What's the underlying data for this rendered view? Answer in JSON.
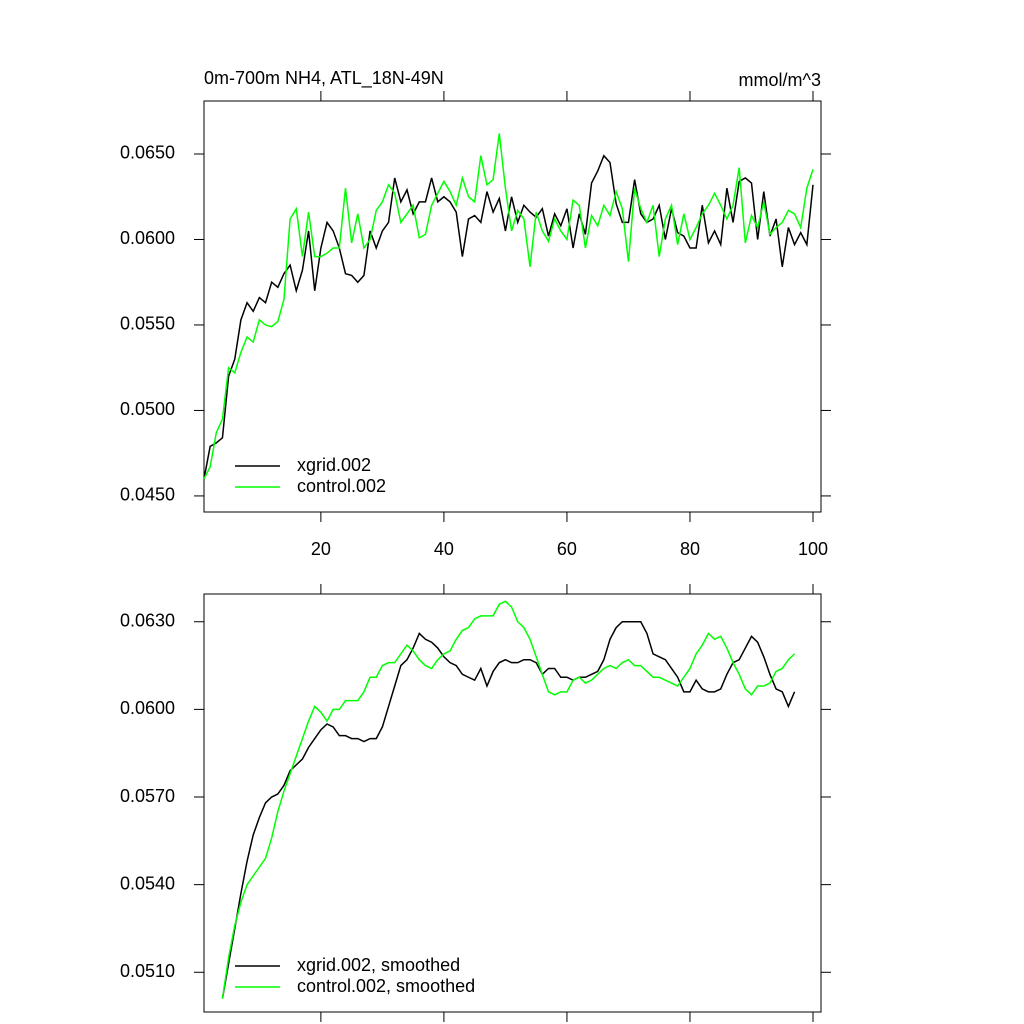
{
  "chart_data": [
    {
      "type": "line",
      "title": "0m-700m NH4, ATL_18N-49N",
      "units": "mmol/m^3",
      "x": [
        1,
        2,
        3,
        4,
        5,
        6,
        7,
        8,
        9,
        10,
        11,
        12,
        13,
        14,
        15,
        16,
        17,
        18,
        19,
        20,
        21,
        22,
        23,
        24,
        25,
        26,
        27,
        28,
        29,
        30,
        31,
        32,
        33,
        34,
        35,
        36,
        37,
        38,
        39,
        40,
        41,
        42,
        43,
        44,
        45,
        46,
        47,
        48,
        49,
        50,
        51,
        52,
        53,
        54,
        55,
        56,
        57,
        58,
        59,
        60,
        61,
        62,
        63,
        64,
        65,
        66,
        67,
        68,
        69,
        70,
        71,
        72,
        73,
        74,
        75,
        76,
        77,
        78,
        79,
        80,
        81,
        82,
        83,
        84,
        85,
        86,
        87,
        88,
        89,
        90,
        91,
        92,
        93,
        94,
        95,
        96,
        97,
        98,
        99,
        100
      ],
      "series": [
        {
          "name": "xgrid.002",
          "color": "#000000",
          "values": [
            0.046,
            0.0479,
            0.0481,
            0.0484,
            0.052,
            0.053,
            0.0553,
            0.0563,
            0.0558,
            0.0566,
            0.0563,
            0.0575,
            0.0572,
            0.058,
            0.0585,
            0.057,
            0.0582,
            0.0605,
            0.057,
            0.0595,
            0.061,
            0.0605,
            0.0595,
            0.058,
            0.0579,
            0.0575,
            0.0579,
            0.0605,
            0.0595,
            0.0605,
            0.061,
            0.0636,
            0.0622,
            0.0629,
            0.0615,
            0.0622,
            0.0622,
            0.0636,
            0.0622,
            0.0625,
            0.0622,
            0.0616,
            0.059,
            0.0612,
            0.0614,
            0.061,
            0.0628,
            0.0616,
            0.0624,
            0.0605,
            0.0625,
            0.061,
            0.062,
            0.0616,
            0.0613,
            0.0618,
            0.0602,
            0.0615,
            0.0608,
            0.0618,
            0.0595,
            0.0615,
            0.0603,
            0.0633,
            0.064,
            0.0649,
            0.0645,
            0.0621,
            0.061,
            0.061,
            0.0635,
            0.0615,
            0.061,
            0.0612,
            0.062,
            0.06,
            0.0618,
            0.0604,
            0.0602,
            0.0595,
            0.0595,
            0.062,
            0.0598,
            0.0605,
            0.0597,
            0.063,
            0.061,
            0.0634,
            0.0636,
            0.0633,
            0.06,
            0.0628,
            0.0602,
            0.0612,
            0.0584,
            0.0607,
            0.0597,
            0.0604,
            0.0597,
            0.0632
          ]
        },
        {
          "name": "control.002",
          "color": "#00ff00",
          "values": [
            0.046,
            0.0467,
            0.0487,
            0.0495,
            0.0525,
            0.0522,
            0.0534,
            0.0543,
            0.054,
            0.0553,
            0.055,
            0.0549,
            0.0552,
            0.0565,
            0.0612,
            0.0618,
            0.059,
            0.0616,
            0.059,
            0.059,
            0.0592,
            0.0595,
            0.0595,
            0.063,
            0.0598,
            0.0615,
            0.0595,
            0.06,
            0.0617,
            0.0622,
            0.0632,
            0.0627,
            0.061,
            0.0615,
            0.062,
            0.0601,
            0.0603,
            0.062,
            0.0627,
            0.0634,
            0.0628,
            0.062,
            0.0636,
            0.0625,
            0.0622,
            0.0649,
            0.0632,
            0.0635,
            0.0662,
            0.063,
            0.0605,
            0.0617,
            0.0612,
            0.0584,
            0.0616,
            0.0605,
            0.0599,
            0.0612,
            0.0605,
            0.06,
            0.0623,
            0.062,
            0.0595,
            0.0614,
            0.0608,
            0.062,
            0.0614,
            0.0628,
            0.0618,
            0.0587,
            0.063,
            0.0618,
            0.061,
            0.062,
            0.059,
            0.0612,
            0.062,
            0.0597,
            0.0615,
            0.06,
            0.0607,
            0.0615,
            0.062,
            0.0627,
            0.062,
            0.0612,
            0.062,
            0.0642,
            0.0598,
            0.0614,
            0.0607,
            0.0622,
            0.0603,
            0.0607,
            0.061,
            0.0617,
            0.0615,
            0.0607,
            0.063,
            0.0641
          ]
        }
      ],
      "xlim": [
        1,
        101.3
      ],
      "xticks": [
        20,
        40,
        60,
        80,
        100
      ],
      "show_xtick_labels": true,
      "ylim": [
        0.04406,
        0.0681
      ],
      "yticks": [
        {
          "value": 0.045,
          "label": "0.0450"
        },
        {
          "value": 0.05,
          "label": "0.0500"
        },
        {
          "value": 0.055,
          "label": "0.0550"
        },
        {
          "value": 0.06,
          "label": "0.0600"
        },
        {
          "value": 0.065,
          "label": "0.0650"
        }
      ],
      "legend": "lower left"
    },
    {
      "type": "line",
      "x": [
        4,
        5,
        6,
        7,
        8,
        9,
        10,
        11,
        12,
        13,
        14,
        15,
        16,
        17,
        18,
        19,
        20,
        21,
        22,
        23,
        24,
        25,
        26,
        27,
        28,
        29,
        30,
        31,
        32,
        33,
        34,
        35,
        36,
        37,
        38,
        39,
        40,
        41,
        42,
        43,
        44,
        45,
        46,
        47,
        48,
        49,
        50,
        51,
        52,
        53,
        54,
        55,
        56,
        57,
        58,
        59,
        60,
        61,
        62,
        63,
        64,
        65,
        66,
        67,
        68,
        69,
        70,
        71,
        72,
        73,
        74,
        75,
        76,
        77,
        78,
        79,
        80,
        81,
        82,
        83,
        84,
        85,
        86,
        87,
        88,
        89,
        90,
        91,
        92,
        93,
        94,
        95,
        96,
        97
      ],
      "series": [
        {
          "name": "xgrid.002, smoothed",
          "color": "#000000",
          "values": [
            0.0501,
            0.0513,
            0.0525,
            0.0537,
            0.0548,
            0.0557,
            0.0563,
            0.0568,
            0.057,
            0.0571,
            0.0574,
            0.0579,
            0.0581,
            0.0583,
            0.0587,
            0.059,
            0.0593,
            0.0595,
            0.0594,
            0.0591,
            0.0591,
            0.059,
            0.059,
            0.0589,
            0.059,
            0.059,
            0.0594,
            0.0601,
            0.0608,
            0.0615,
            0.0617,
            0.0621,
            0.0626,
            0.0624,
            0.0623,
            0.0621,
            0.0618,
            0.0616,
            0.0615,
            0.0612,
            0.0611,
            0.061,
            0.0614,
            0.0608,
            0.0613,
            0.0616,
            0.0617,
            0.0616,
            0.0616,
            0.0617,
            0.0617,
            0.0616,
            0.0612,
            0.0614,
            0.0614,
            0.0611,
            0.0611,
            0.061,
            0.0611,
            0.0611,
            0.0612,
            0.0613,
            0.0617,
            0.0624,
            0.0628,
            0.063,
            0.063,
            0.063,
            0.063,
            0.0626,
            0.0619,
            0.0618,
            0.0617,
            0.0614,
            0.0611,
            0.0606,
            0.0606,
            0.061,
            0.0607,
            0.0606,
            0.0606,
            0.0607,
            0.0612,
            0.0616,
            0.0617,
            0.0621,
            0.0625,
            0.0623,
            0.0618,
            0.0612,
            0.0607,
            0.0606,
            0.0601,
            0.0606
          ]
        },
        {
          "name": "control.002, smoothed",
          "color": "#00ff00",
          "values": [
            0.0501,
            0.0515,
            0.0526,
            0.0534,
            0.054,
            0.0543,
            0.0546,
            0.0549,
            0.0556,
            0.0565,
            0.0572,
            0.0578,
            0.0584,
            0.059,
            0.0596,
            0.0601,
            0.0599,
            0.0596,
            0.06,
            0.06,
            0.0603,
            0.0603,
            0.0603,
            0.0606,
            0.0611,
            0.0611,
            0.0615,
            0.0616,
            0.0616,
            0.0619,
            0.0622,
            0.062,
            0.0617,
            0.0615,
            0.0614,
            0.0617,
            0.0619,
            0.062,
            0.0624,
            0.0627,
            0.0628,
            0.0631,
            0.0632,
            0.0632,
            0.0632,
            0.0636,
            0.0637,
            0.0635,
            0.063,
            0.0628,
            0.0624,
            0.0618,
            0.0612,
            0.0606,
            0.0605,
            0.0606,
            0.0606,
            0.061,
            0.0611,
            0.0609,
            0.061,
            0.0612,
            0.0614,
            0.0615,
            0.0614,
            0.0616,
            0.0617,
            0.0615,
            0.0615,
            0.0613,
            0.0611,
            0.0611,
            0.061,
            0.0609,
            0.0608,
            0.0611,
            0.0614,
            0.0619,
            0.0622,
            0.0626,
            0.0624,
            0.0625,
            0.0621,
            0.0616,
            0.0612,
            0.0607,
            0.0605,
            0.0608,
            0.0608,
            0.0609,
            0.0613,
            0.0614,
            0.0617,
            0.0619
          ]
        }
      ],
      "xlim": [
        1,
        101.3
      ],
      "xticks": [
        20,
        40,
        60,
        80,
        100
      ],
      "show_xtick_labels": false,
      "ylim": [
        0.04964,
        0.06395
      ],
      "yticks": [
        {
          "value": 0.051,
          "label": "0.0510"
        },
        {
          "value": 0.054,
          "label": "0.0540"
        },
        {
          "value": 0.057,
          "label": "0.0570"
        },
        {
          "value": 0.06,
          "label": "0.0600"
        },
        {
          "value": 0.063,
          "label": "0.0630"
        }
      ],
      "legend": "lower left"
    }
  ]
}
